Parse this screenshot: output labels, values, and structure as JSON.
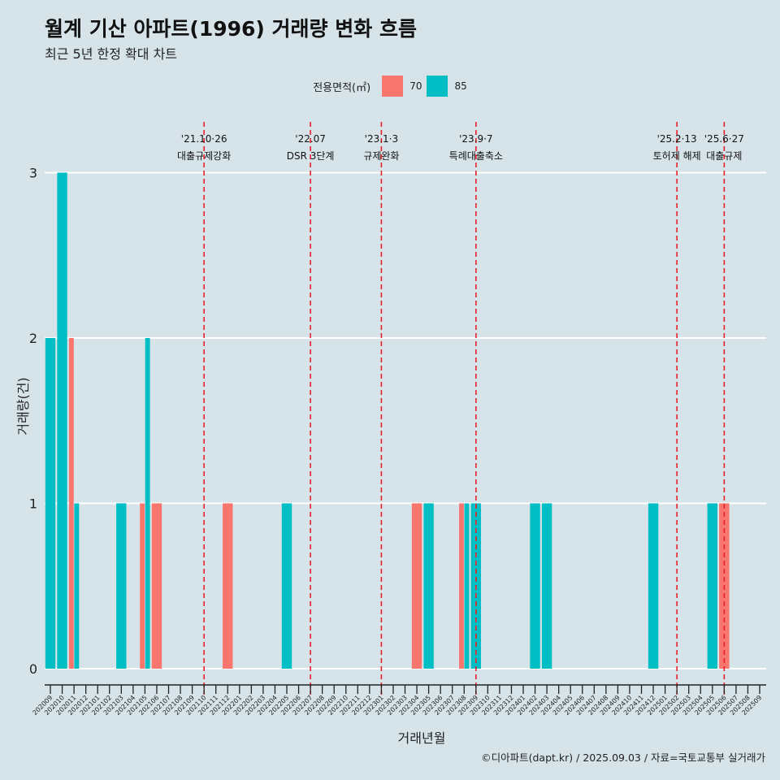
{
  "title": "월계 기산 아파트(1996) 거래량 변화 흐름",
  "subtitle": "최근 5년 한정 확대 차트",
  "caption": "©디아파트(dapt.kr) / 2025.09.03 / 자료=국토교통부 실거래가",
  "legend": {
    "title": "전용면적(㎡)",
    "items": [
      {
        "label": "70",
        "color": "#f8766d"
      },
      {
        "label": "85",
        "color": "#00bfc4"
      }
    ]
  },
  "chart_data": {
    "type": "bar",
    "xlabel": "거래년월",
    "ylabel": "거래량(건)",
    "ylim": [
      0,
      3
    ],
    "yticks": [
      0,
      1,
      2,
      3
    ],
    "grid": true,
    "legend_position": "top",
    "categories": [
      "202009",
      "202010",
      "202011",
      "202012",
      "202101",
      "202102",
      "202103",
      "202104",
      "202105",
      "202106",
      "202107",
      "202108",
      "202109",
      "202110",
      "202111",
      "202112",
      "202201",
      "202202",
      "202203",
      "202204",
      "202205",
      "202206",
      "202207",
      "202208",
      "202209",
      "202210",
      "202211",
      "202212",
      "202301",
      "202302",
      "202303",
      "202304",
      "202305",
      "202306",
      "202307",
      "202308",
      "202309",
      "202310",
      "202311",
      "202312",
      "202401",
      "202402",
      "202403",
      "202404",
      "202405",
      "202406",
      "202407",
      "202408",
      "202409",
      "202410",
      "202411",
      "202412",
      "202501",
      "202502",
      "202503",
      "202504",
      "202505",
      "202506",
      "202507",
      "202508",
      "202509"
    ],
    "series": [
      {
        "name": "70",
        "color": "#f8766d",
        "points": [
          [
            "202011",
            2
          ],
          [
            "202105",
            1
          ],
          [
            "202106",
            1
          ],
          [
            "202112",
            1
          ],
          [
            "202304",
            1
          ],
          [
            "202308",
            1
          ],
          [
            "202506",
            1
          ]
        ]
      },
      {
        "name": "85",
        "color": "#00bfc4",
        "points": [
          [
            "202009",
            2
          ],
          [
            "202010",
            3
          ],
          [
            "202011",
            1
          ],
          [
            "202103",
            1
          ],
          [
            "202105",
            2
          ],
          [
            "202205",
            1
          ],
          [
            "202305",
            1
          ],
          [
            "202308",
            1
          ],
          [
            "202309",
            1
          ],
          [
            "202402",
            1
          ],
          [
            "202403",
            1
          ],
          [
            "202412",
            1
          ],
          [
            "202505",
            1
          ]
        ]
      }
    ],
    "events": [
      {
        "month": "202110",
        "lines": [
          "'21.10·26",
          "대출규제강화"
        ]
      },
      {
        "month": "202207",
        "lines": [
          "'22.07",
          "DSR 3단계"
        ]
      },
      {
        "month": "202301",
        "lines": [
          "'23.1·3",
          "규제완화"
        ]
      },
      {
        "month": "202309",
        "lines": [
          "'23.9·7",
          "특례대출축소"
        ]
      },
      {
        "month": "202502",
        "lines": [
          "'25.2·13",
          "토허제 해제"
        ]
      },
      {
        "month": "202506",
        "lines": [
          "'25.6·27",
          "대출규제"
        ]
      }
    ]
  }
}
